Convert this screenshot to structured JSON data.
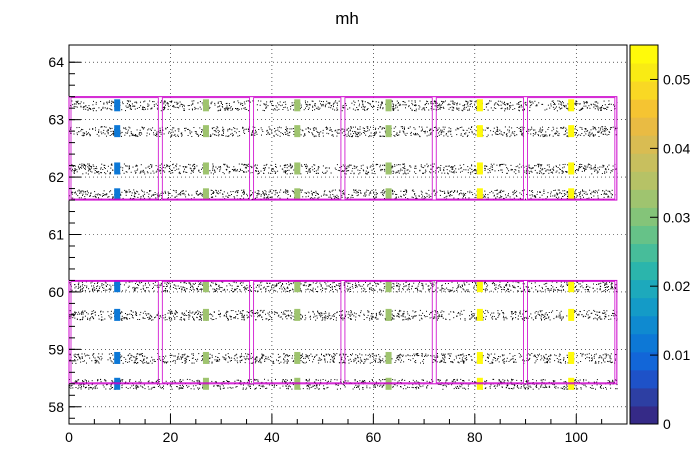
{
  "chart_data": {
    "type": "heatmap",
    "title": "mh",
    "xlabel": "",
    "ylabel": "",
    "xlim": [
      0,
      110
    ],
    "ylim": [
      57.7,
      64.3
    ],
    "grid": true,
    "x_ticks": [
      "0",
      "20",
      "40",
      "60",
      "80",
      "100"
    ],
    "y_ticks": [
      "58",
      "59",
      "60",
      "61",
      "62",
      "63",
      "64"
    ],
    "z_ticks": [
      "0",
      "0.01",
      "0.02",
      "0.03",
      "0.04",
      "0.05"
    ],
    "zlim": [
      0,
      0.055
    ],
    "palette": [
      "#352a87",
      "#2d3fa3",
      "#1e52c8",
      "#1266d8",
      "#0d78d6",
      "#0f8ad0",
      "#149bc7",
      "#1da9bc",
      "#2bb5ac",
      "#47bd9a",
      "#66c288",
      "#84c479",
      "#9fc46f",
      "#b6c266",
      "#c8bf5e",
      "#d9bc52",
      "#e9bb43",
      "#f5c432",
      "#f9d824",
      "#f9eb14",
      "#fffa0a"
    ],
    "strips_y": [
      63.25,
      62.8,
      62.15,
      61.7,
      60.1,
      59.6,
      58.85,
      58.4
    ],
    "hot_spots": [
      {
        "x": 9.5,
        "z": 0.012
      },
      {
        "x": 27,
        "z": 0.032
      },
      {
        "x": 45,
        "z": 0.032
      },
      {
        "x": 63,
        "z": 0.032
      },
      {
        "x": 81,
        "z": 0.054
      },
      {
        "x": 99,
        "z": 0.054
      }
    ],
    "groups": [
      {
        "ylim": [
          61.6,
          63.4
        ]
      },
      {
        "ylim": [
          58.4,
          60.2
        ]
      }
    ],
    "modules_x": [
      [
        0,
        18
      ],
      [
        18,
        36
      ],
      [
        36,
        54
      ],
      [
        54,
        72
      ],
      [
        72,
        90
      ],
      [
        90,
        108
      ]
    ],
    "outline_color": "#cc00cc"
  }
}
